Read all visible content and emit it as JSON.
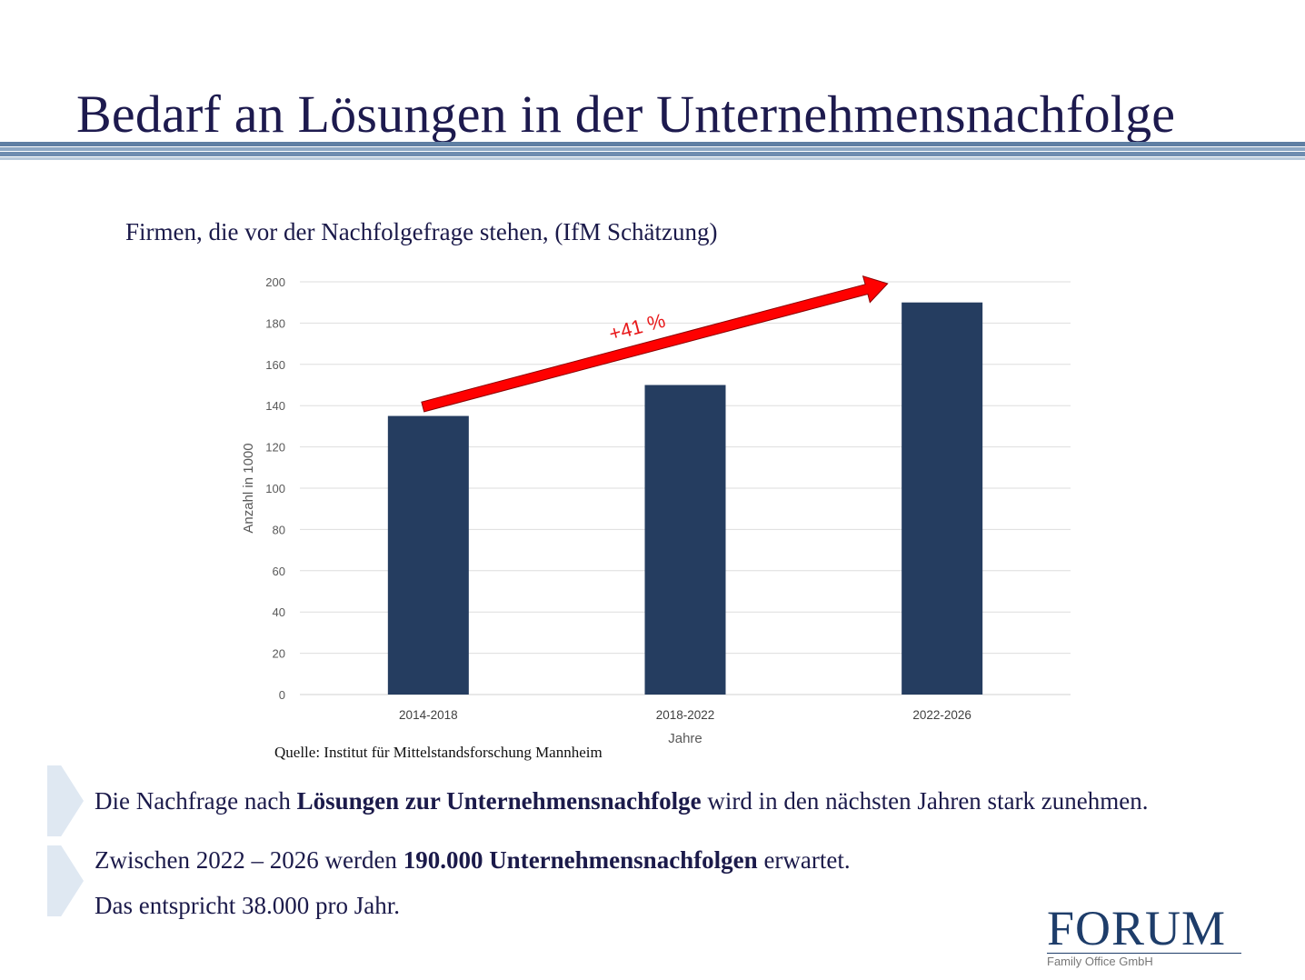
{
  "slide": {
    "title": "Bedarf an Lösungen in der Unternehmensnachfolge",
    "subtitle": "Firmen, die vor der Nachfolgefrage stehen, (IfM Schätzung)",
    "source": "Quelle: Institut für Mittelstandsforschung Mannheim"
  },
  "bullets": [
    {
      "pre": "Die Nachfrage nach ",
      "bold": "Lösungen zur Unternehmensnachfolge",
      "post": " wird in den nächsten Jahren stark zunehmen."
    },
    {
      "pre": "Zwischen 2022 – 2026 werden ",
      "bold": "190.000 Unternehmensnachfolgen",
      "post": " erwartet.",
      "line2": "Das entspricht 38.000 pro Jahr."
    }
  ],
  "logo": {
    "word": "FORUM",
    "sub": "Family Office GmbH"
  },
  "colors": {
    "title": "#1d1a4e",
    "bar": "#253d60",
    "arrow": "#ff0000",
    "annotation": "#e8191b",
    "logo": "#1e3d6a"
  },
  "chart_data": {
    "type": "bar",
    "categories": [
      "2014-2018",
      "2018-2022",
      "2022-2026"
    ],
    "values": [
      135,
      150,
      190
    ],
    "xlabel": "Jahre",
    "ylabel": "Anzahl in 1000",
    "ylim": [
      0,
      200
    ],
    "yticks": [
      0,
      20,
      40,
      60,
      80,
      100,
      120,
      140,
      160,
      180,
      200
    ],
    "grid": true,
    "annotation": "+41 %"
  }
}
